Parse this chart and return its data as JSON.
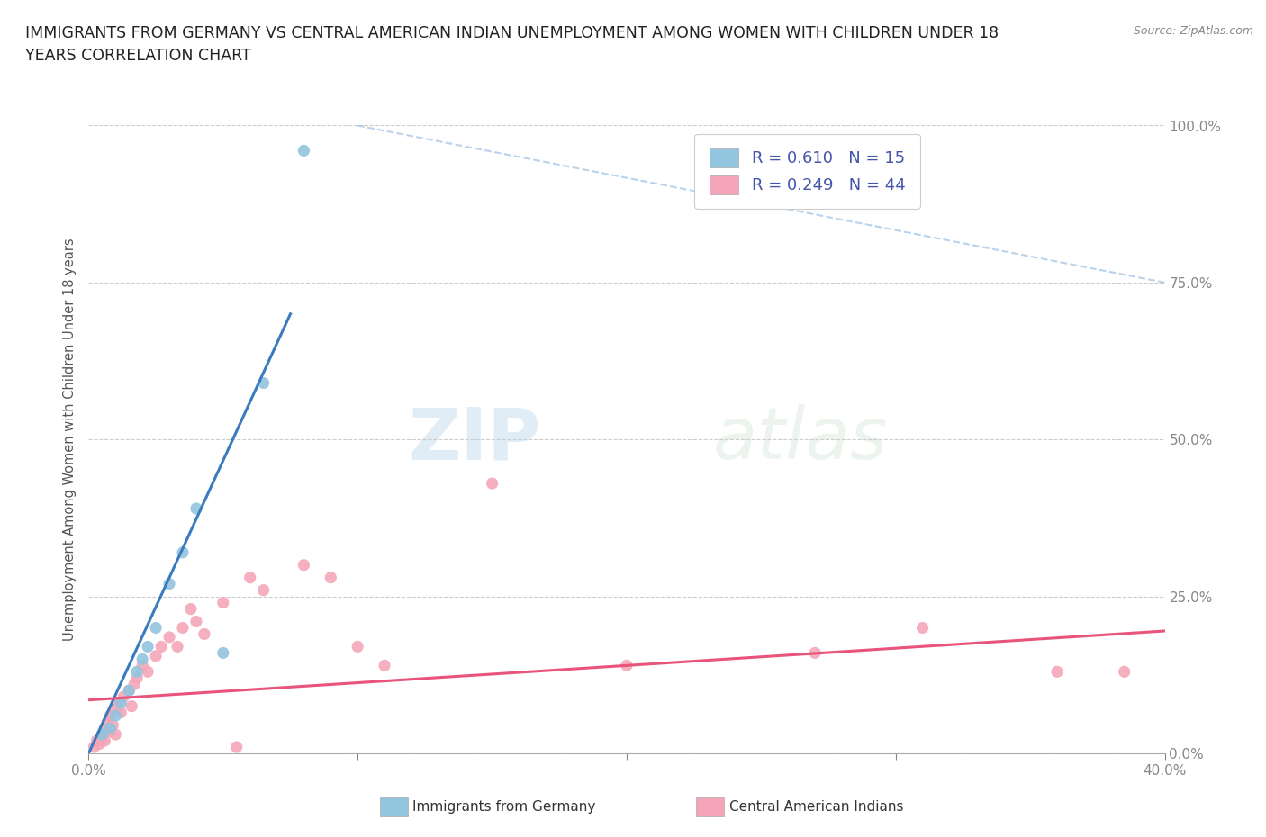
{
  "title": "IMMIGRANTS FROM GERMANY VS CENTRAL AMERICAN INDIAN UNEMPLOYMENT AMONG WOMEN WITH CHILDREN UNDER 18\nYEARS CORRELATION CHART",
  "source": "Source: ZipAtlas.com",
  "ylabel": "Unemployment Among Women with Children Under 18 years",
  "legend_label1": "Immigrants from Germany",
  "legend_label2": "Central American Indians",
  "R1": 0.61,
  "N1": 15,
  "R2": 0.249,
  "N2": 44,
  "color_blue": "#92c5de",
  "color_pink": "#f4a6b8",
  "color_line_blue": "#3a7abf",
  "color_line_pink": "#e8547a",
  "color_dashed": "#a8c8e8",
  "watermark_zip": "ZIP",
  "watermark_atlas": "atlas",
  "xlim": [
    0.0,
    0.4
  ],
  "ylim": [
    0.0,
    1.0
  ],
  "xtick_positions": [
    0.0,
    0.1,
    0.2,
    0.3,
    0.4
  ],
  "xtick_labels_ends": [
    "0.0%",
    "40.0%"
  ],
  "yticks_right": [
    0.0,
    0.25,
    0.5,
    0.75,
    1.0
  ],
  "ytick_labels_right": [
    "0.0%",
    "25.0%",
    "50.0%",
    "75.0%",
    "100.0%"
  ],
  "blue_scatter_x": [
    0.005,
    0.008,
    0.01,
    0.012,
    0.015,
    0.018,
    0.02,
    0.022,
    0.025,
    0.03,
    0.035,
    0.04,
    0.05,
    0.065,
    0.08
  ],
  "blue_scatter_y": [
    0.03,
    0.04,
    0.06,
    0.08,
    0.1,
    0.13,
    0.15,
    0.17,
    0.2,
    0.27,
    0.32,
    0.39,
    0.16,
    0.59,
    0.96
  ],
  "pink_scatter_x": [
    0.002,
    0.003,
    0.004,
    0.005,
    0.005,
    0.006,
    0.006,
    0.007,
    0.008,
    0.008,
    0.009,
    0.01,
    0.01,
    0.011,
    0.012,
    0.013,
    0.015,
    0.016,
    0.017,
    0.018,
    0.02,
    0.022,
    0.025,
    0.027,
    0.03,
    0.033,
    0.035,
    0.038,
    0.04,
    0.043,
    0.05,
    0.055,
    0.06,
    0.065,
    0.08,
    0.09,
    0.1,
    0.11,
    0.15,
    0.2,
    0.27,
    0.31,
    0.36,
    0.385
  ],
  "pink_scatter_y": [
    0.01,
    0.02,
    0.015,
    0.025,
    0.03,
    0.02,
    0.04,
    0.05,
    0.035,
    0.06,
    0.045,
    0.07,
    0.03,
    0.08,
    0.065,
    0.09,
    0.1,
    0.075,
    0.11,
    0.12,
    0.14,
    0.13,
    0.155,
    0.17,
    0.185,
    0.17,
    0.2,
    0.23,
    0.21,
    0.19,
    0.24,
    0.01,
    0.28,
    0.26,
    0.3,
    0.28,
    0.17,
    0.14,
    0.43,
    0.14,
    0.16,
    0.2,
    0.13,
    0.13
  ],
  "blue_line_x0": 0.0,
  "blue_line_x1": 0.075,
  "blue_line_y0": 0.0,
  "blue_line_y1": 0.7,
  "pink_line_x0": 0.0,
  "pink_line_x1": 0.4,
  "pink_line_y0": 0.085,
  "pink_line_y1": 0.195,
  "dash_line_x0": 0.1,
  "dash_line_x1": 0.4,
  "dash_line_y0": 1.0,
  "dash_line_y1": 0.75
}
